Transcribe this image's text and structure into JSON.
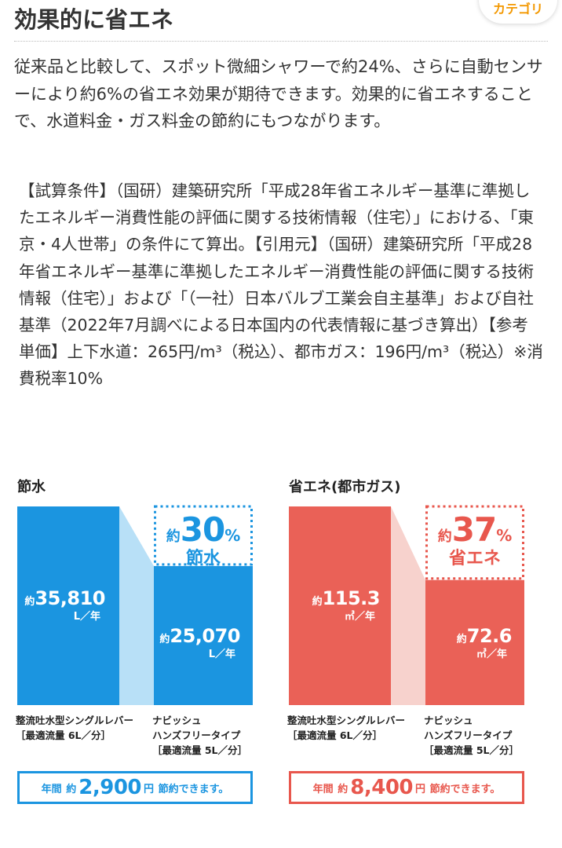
{
  "header": {
    "title": "効果的に省エネ",
    "category_tab": "カテゴリ"
  },
  "intro_text": "従来品と比較して、スポット微細シャワーで約24%、さらに自動センサーにより約6%の省エネ効果が期待できます。効果的に省エネすることで、水道料金・ガス料金の節約にもつながります。",
  "conditions_text": "【試算条件】（国研）建築研究所「平成28年省エネルギー基準に準拠したエネルギー消費性能の評価に関する技術情報（住宅）」における、「東京・4人世帯」の条件にて算出。【引用元】（国研）建築研究所「平成28年省エネルギー基準に準拠したエネルギー消費性能の評価に関する技術情報（住宅）」および「（一社）日本バルブ工業会自主基準」および自社基準（2022年7月調べによる日本国内の代表情報に基づき算出）【参考単価】上下水道：265円/m³（税込）、都市ガス：196円/m³（税込）※消費税率10%",
  "colors": {
    "water_bar": "#1b95e0",
    "water_connector": "#b8e0f7",
    "water_accent": "#1b95e0",
    "gas_bar": "#ea6157",
    "gas_connector": "#f7d2cd",
    "gas_accent": "#e8574d",
    "category_tab_text": "#f39800"
  },
  "chart_data": [
    {
      "type": "bar",
      "title": "節水",
      "categories": [
        [
          "整流吐水型シングルレバー",
          "［最適流量 6L／分］"
        ],
        [
          "ナビッシュ",
          "ハンズフリータイプ",
          "［最適流量 5L／分］"
        ]
      ],
      "values": [
        35810,
        25070
      ],
      "value_labels": [
        "35,810",
        "25,070"
      ],
      "approx_label": "約",
      "unit": "L／年",
      "reduction_approx": "約",
      "reduction_number": "30",
      "reduction_unit": "%",
      "reduction_effect": "節水",
      "savings": {
        "prefix": "年間",
        "approx": "約",
        "amount": "2,900",
        "unit": "円",
        "suffix": "節約できます。"
      },
      "ylim": [
        0,
        35810
      ]
    },
    {
      "type": "bar",
      "title": "省エネ(都市ガス)",
      "categories": [
        [
          "整流吐水型シングルレバー",
          "［最適流量 6L／分］"
        ],
        [
          "ナビッシュ",
          "ハンズフリータイプ",
          "［最適流量 5L／分］"
        ]
      ],
      "values": [
        115.3,
        72.6
      ],
      "value_labels": [
        "115.3",
        "72.6"
      ],
      "approx_label": "約",
      "unit": "㎥／年",
      "reduction_approx": "約",
      "reduction_number": "37",
      "reduction_unit": "%",
      "reduction_effect": "省エネ",
      "savings": {
        "prefix": "年間",
        "approx": "約",
        "amount": "8,400",
        "unit": "円",
        "suffix": "節約できます。"
      },
      "ylim": [
        0,
        115.3
      ]
    }
  ]
}
